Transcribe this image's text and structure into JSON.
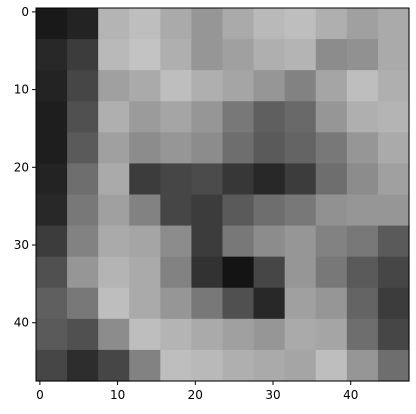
{
  "chart_data": {
    "type": "heatmap",
    "colormap": "gray",
    "grid": false,
    "x_ticks": [
      0,
      10,
      20,
      30,
      40
    ],
    "y_ticks": [
      0,
      10,
      20,
      30,
      40
    ],
    "xlim": [
      -0.5,
      47.5
    ],
    "ylim": [
      47.5,
      -0.5
    ],
    "grid_size": [
      48,
      48
    ],
    "pixel_values_coarse_12x12": [
      [
        25,
        35,
        180,
        190,
        170,
        150,
        170,
        185,
        190,
        175,
        160,
        170
      ],
      [
        40,
        60,
        185,
        195,
        175,
        150,
        160,
        175,
        180,
        140,
        145,
        170
      ],
      [
        35,
        70,
        160,
        170,
        190,
        175,
        165,
        150,
        130,
        165,
        190,
        175
      ],
      [
        30,
        80,
        175,
        155,
        165,
        150,
        120,
        95,
        105,
        150,
        175,
        180
      ],
      [
        30,
        90,
        160,
        140,
        150,
        140,
        110,
        90,
        100,
        120,
        150,
        170
      ],
      [
        35,
        110,
        170,
        60,
        70,
        75,
        55,
        40,
        60,
        110,
        140,
        160
      ],
      [
        40,
        120,
        160,
        130,
        70,
        60,
        90,
        110,
        120,
        145,
        150,
        150
      ],
      [
        60,
        130,
        170,
        165,
        140,
        60,
        120,
        140,
        150,
        130,
        120,
        90
      ],
      [
        80,
        150,
        180,
        170,
        130,
        50,
        20,
        70,
        150,
        120,
        90,
        70
      ],
      [
        95,
        120,
        190,
        170,
        150,
        120,
        80,
        40,
        160,
        150,
        100,
        60
      ],
      [
        90,
        80,
        140,
        190,
        180,
        170,
        160,
        150,
        170,
        165,
        110,
        70
      ],
      [
        70,
        45,
        70,
        130,
        190,
        185,
        175,
        170,
        165,
        190,
        150,
        110
      ]
    ]
  }
}
